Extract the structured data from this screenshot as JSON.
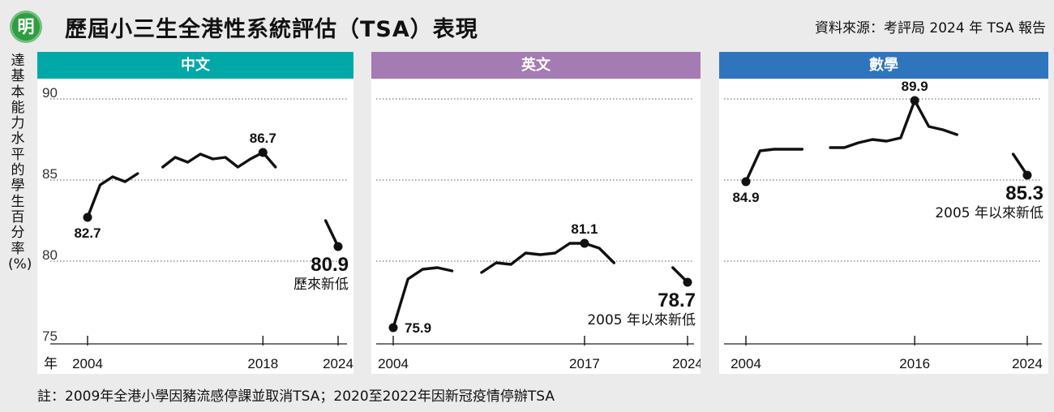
{
  "header": {
    "logo_char": "明",
    "title": "歷屆小三生全港性系統評估（TSA）表現",
    "source": "資料來源：考評局 2024 年 TSA 報告"
  },
  "y_axis_label": "達基本能力水平的學生百分率(%)",
  "footnote": "註：2009年全港小學因豬流感停課並取消TSA；2020至2022年因新冠疫情停辦TSA",
  "colors": {
    "chinese": "#00a9a8",
    "english": "#a47bb2",
    "math": "#2f75bd",
    "line": "#111111",
    "grid": "#777777"
  },
  "chart_data": [
    {
      "type": "line",
      "panel_title": "中文",
      "ylim": [
        75,
        90
      ],
      "yticks": [
        75,
        80,
        85,
        90
      ],
      "xlabels": [
        "年",
        "2004",
        "2018",
        "2024"
      ],
      "segments": [
        {
          "x": [
            2004,
            2005,
            2006,
            2007,
            2008
          ],
          "y": [
            82.7,
            84.7,
            85.2,
            84.9,
            85.4
          ]
        },
        {
          "x": [
            2010,
            2011,
            2012,
            2013,
            2014,
            2015,
            2016,
            2017,
            2018,
            2019
          ],
          "y": [
            85.8,
            86.4,
            86.1,
            86.6,
            86.3,
            86.4,
            85.8,
            86.3,
            86.7,
            85.8
          ]
        },
        {
          "x": [
            2023,
            2024
          ],
          "y": [
            82.5,
            80.9
          ]
        }
      ],
      "markers": [
        {
          "x": 2004,
          "y": 82.7,
          "label": "82.7"
        },
        {
          "x": 2018,
          "y": 86.7,
          "label": "86.7"
        },
        {
          "x": 2024,
          "y": 80.9,
          "label": "80.9",
          "note": "歷來新低"
        }
      ]
    },
    {
      "type": "line",
      "panel_title": "英文",
      "ylim": [
        75,
        90
      ],
      "xlabels": [
        "2004",
        "2017",
        "2024"
      ],
      "segments": [
        {
          "x": [
            2004,
            2005,
            2006,
            2007,
            2008
          ],
          "y": [
            75.9,
            78.9,
            79.5,
            79.6,
            79.4
          ]
        },
        {
          "x": [
            2010,
            2011,
            2012,
            2013,
            2014,
            2015,
            2016,
            2017,
            2018,
            2019
          ],
          "y": [
            79.3,
            79.9,
            79.8,
            80.5,
            80.4,
            80.5,
            81.1,
            81.1,
            80.8,
            79.9
          ]
        },
        {
          "x": [
            2023,
            2024
          ],
          "y": [
            79.6,
            78.7
          ]
        }
      ],
      "markers": [
        {
          "x": 2004,
          "y": 75.9,
          "label": "75.9"
        },
        {
          "x": 2017,
          "y": 81.1,
          "label": "81.1"
        },
        {
          "x": 2024,
          "y": 78.7,
          "label": "78.7",
          "note": "2005 年以來新低"
        }
      ]
    },
    {
      "type": "line",
      "panel_title": "數學",
      "ylim": [
        75,
        90
      ],
      "xlabels": [
        "2004",
        "2016",
        "2024"
      ],
      "segments": [
        {
          "x": [
            2004,
            2005,
            2006,
            2007,
            2008
          ],
          "y": [
            84.9,
            86.8,
            86.9,
            86.9,
            86.9
          ]
        },
        {
          "x": [
            2010,
            2011,
            2012,
            2013,
            2014,
            2015,
            2016,
            2017,
            2018,
            2019
          ],
          "y": [
            87.0,
            87.0,
            87.3,
            87.5,
            87.4,
            87.6,
            89.9,
            88.3,
            88.1,
            87.8
          ]
        },
        {
          "x": [
            2023,
            2024
          ],
          "y": [
            86.6,
            85.3
          ]
        }
      ],
      "markers": [
        {
          "x": 2004,
          "y": 84.9,
          "label": "84.9"
        },
        {
          "x": 2016,
          "y": 89.9,
          "label": "89.9"
        },
        {
          "x": 2024,
          "y": 85.3,
          "label": "85.3",
          "note": "2005 年以來新低"
        }
      ]
    }
  ]
}
